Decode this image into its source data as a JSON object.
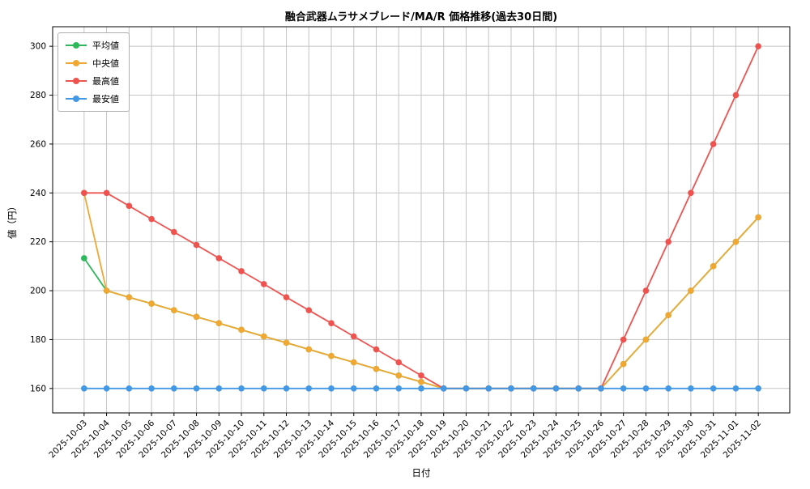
{
  "chart_data": {
    "type": "line",
    "title": "融合武器ムラサメブレード/MA/R 価格推移(過去30日間)",
    "xlabel": "日付",
    "ylabel": "値（円）",
    "ylim": [
      150,
      308
    ],
    "yticks": [
      160,
      180,
      200,
      220,
      240,
      260,
      280,
      300
    ],
    "grid": true,
    "grid_color": "#c4c4c4",
    "legend_position": "upper-left",
    "categories": [
      "2025-10-03",
      "2025-10-04",
      "2025-10-05",
      "2025-10-06",
      "2025-10-07",
      "2025-10-08",
      "2025-10-09",
      "2025-10-10",
      "2025-10-11",
      "2025-10-12",
      "2025-10-13",
      "2025-10-14",
      "2025-10-15",
      "2025-10-16",
      "2025-10-17",
      "2025-10-18",
      "2025-10-19",
      "2025-10-20",
      "2025-10-21",
      "2025-10-22",
      "2025-10-23",
      "2025-10-24",
      "2025-10-25",
      "2025-10-26",
      "2025-10-27",
      "2025-10-28",
      "2025-10-29",
      "2025-10-30",
      "2025-10-31",
      "2025-11-01",
      "2025-11-02"
    ],
    "series": [
      {
        "name": "平均値",
        "color": "#2eb85c",
        "values": [
          213.3,
          200,
          197.3,
          194.7,
          192,
          189.3,
          186.7,
          184,
          181.3,
          178.7,
          176,
          173.3,
          170.7,
          168,
          165.3,
          162.7,
          160,
          160,
          160,
          160,
          160,
          160,
          160,
          160,
          170,
          180,
          190,
          200,
          210,
          220,
          230
        ]
      },
      {
        "name": "中央値",
        "color": "#f0a832",
        "values": [
          240,
          200,
          197.3,
          194.7,
          192,
          189.3,
          186.7,
          184,
          181.3,
          178.7,
          176,
          173.3,
          170.7,
          168,
          165.3,
          162.7,
          160,
          160,
          160,
          160,
          160,
          160,
          160,
          160,
          170,
          180,
          190,
          200,
          210,
          220,
          230
        ]
      },
      {
        "name": "最高値",
        "color": "#ef5350",
        "values": [
          240,
          240,
          234.7,
          229.3,
          224,
          218.7,
          213.3,
          208,
          202.7,
          197.3,
          192,
          186.7,
          181.3,
          176,
          170.7,
          165.3,
          160,
          160,
          160,
          160,
          160,
          160,
          160,
          160,
          180,
          200,
          220,
          240,
          260,
          280,
          300
        ]
      },
      {
        "name": "最安値",
        "color": "#4298e5",
        "values": [
          160,
          160,
          160,
          160,
          160,
          160,
          160,
          160,
          160,
          160,
          160,
          160,
          160,
          160,
          160,
          160,
          160,
          160,
          160,
          160,
          160,
          160,
          160,
          160,
          160,
          160,
          160,
          160,
          160,
          160,
          160
        ]
      }
    ]
  }
}
